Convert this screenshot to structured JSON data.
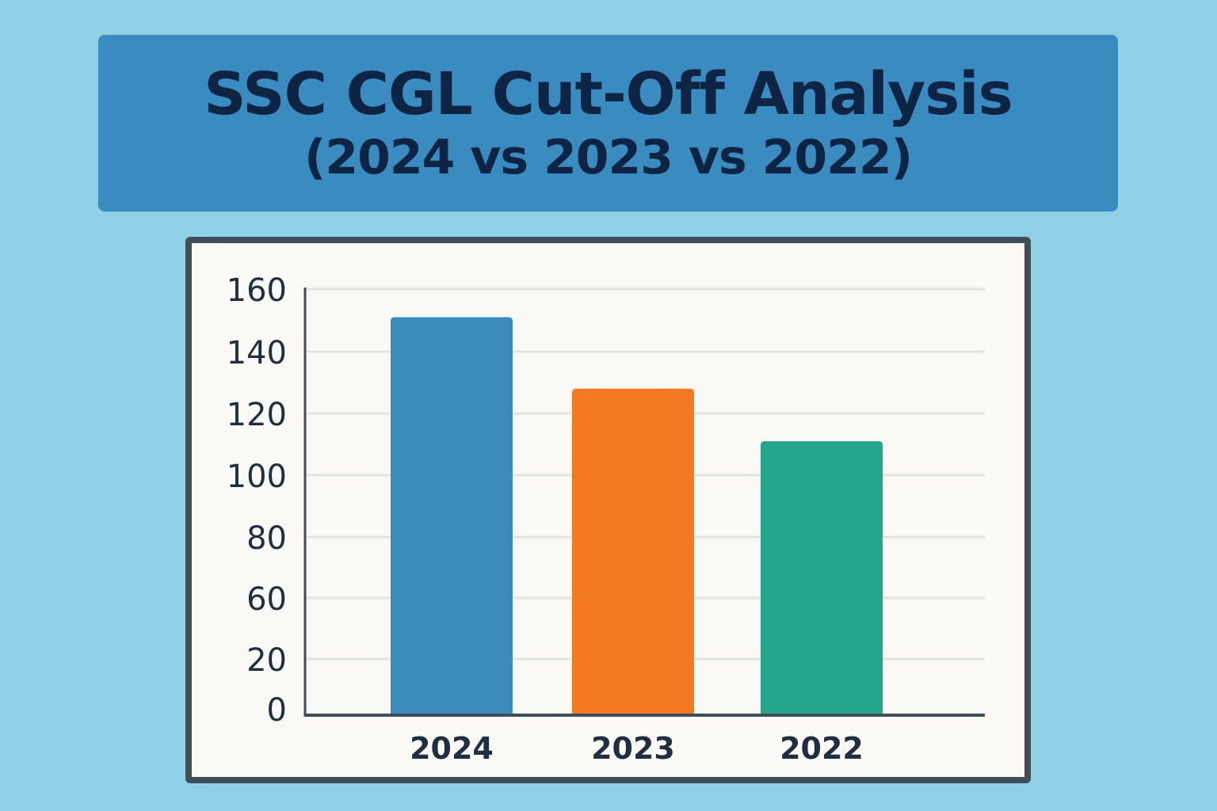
{
  "header": {
    "title": "SSC CGL Cut-Off Analysis",
    "subtitle": "(2024 vs 2023 vs 2022)"
  },
  "chart_data": {
    "type": "bar",
    "title": "SSC CGL Cut-Off Analysis",
    "subtitle": "(2024 vs 2023 vs 2022)",
    "categories": [
      "2024",
      "2023",
      "2022"
    ],
    "values": [
      151,
      128,
      111
    ],
    "colors": [
      "#3b8bbd",
      "#f37a22",
      "#24a48a"
    ],
    "y_ticks": [
      "160",
      "140",
      "120",
      "100",
      "80",
      "60",
      "20",
      "0"
    ],
    "ylim": [
      0,
      160
    ],
    "grid": true,
    "xlabel": "",
    "ylabel": ""
  }
}
